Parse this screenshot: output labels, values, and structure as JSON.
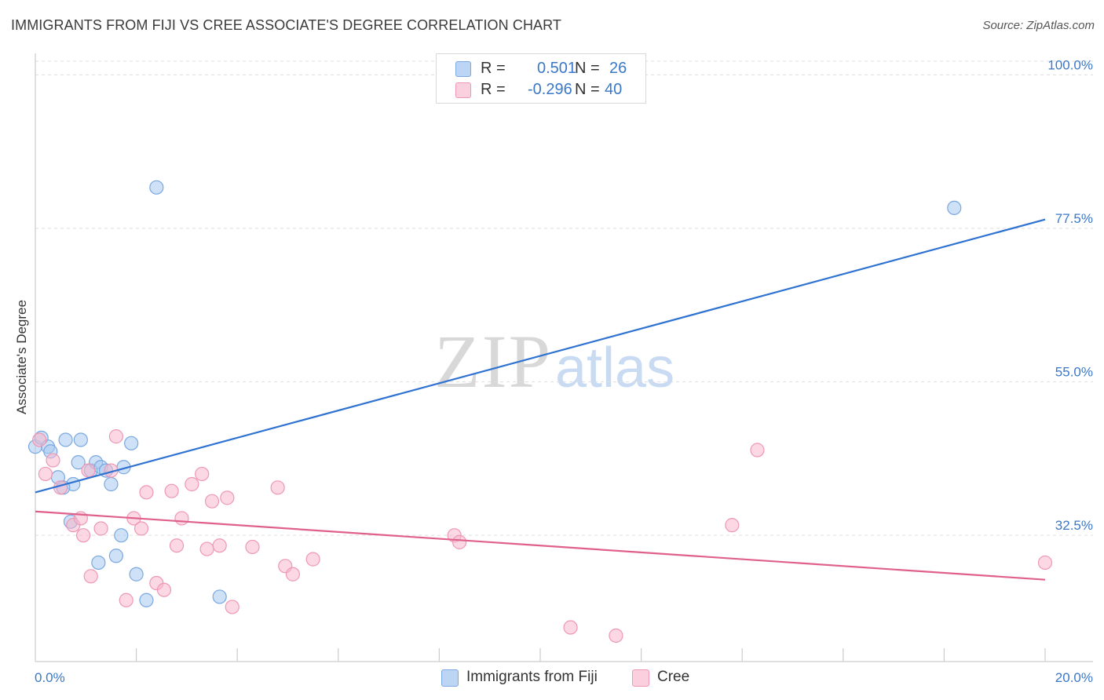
{
  "title": "IMMIGRANTS FROM FIJI VS CREE ASSOCIATE'S DEGREE CORRELATION CHART",
  "source": "Source: ZipAtlas.com",
  "watermark": {
    "zip": "ZIP",
    "atlas": "atlas"
  },
  "legend": {
    "rows": [
      {
        "r_label": "R =",
        "r_value": "0.501",
        "n_label": "N =",
        "n_value": "26"
      },
      {
        "r_label": "R =",
        "r_value": "-0.296",
        "n_label": "N =",
        "n_value": "40"
      }
    ]
  },
  "colors": {
    "fiji_fill": "#a8c8f0",
    "fiji_stroke": "#7aa8e0",
    "fiji_line": "#2e72d2",
    "cree_fill": "#f7b8cc",
    "cree_stroke": "#ee98b4",
    "cree_line": "#e0608c",
    "grid": "#dddddd",
    "tick_label": "#3a78c8"
  },
  "chart_data": {
    "type": "scatter",
    "title": "IMMIGRANTS FROM FIJI VS CREE ASSOCIATE'S DEGREE CORRELATION CHART",
    "xlabel": "",
    "ylabel": "Associate's Degree",
    "xlim": [
      0,
      20
    ],
    "ylim": [
      14,
      102
    ],
    "x_tick_labels": [
      "0.0%",
      "20.0%"
    ],
    "y_ticks": [
      32.5,
      55.0,
      77.5,
      100.0
    ],
    "y_tick_labels": [
      "32.5%",
      "55.0%",
      "77.5%",
      "100.0%"
    ],
    "series": [
      {
        "name": "Immigrants from Fiji",
        "r": 0.501,
        "n": 26,
        "points": [
          [
            0.0,
            45.5
          ],
          [
            0.12,
            46.8
          ],
          [
            0.25,
            45.5
          ],
          [
            0.3,
            44.8
          ],
          [
            0.45,
            41.0
          ],
          [
            0.6,
            46.5
          ],
          [
            0.75,
            40.0
          ],
          [
            0.85,
            43.2
          ],
          [
            0.9,
            46.5
          ],
          [
            1.1,
            42.0
          ],
          [
            1.2,
            43.2
          ],
          [
            1.3,
            42.5
          ],
          [
            1.4,
            42.0
          ],
          [
            1.5,
            40.0
          ],
          [
            1.75,
            42.5
          ],
          [
            1.9,
            46.0
          ],
          [
            0.7,
            34.5
          ],
          [
            1.25,
            28.5
          ],
          [
            1.6,
            29.5
          ],
          [
            1.7,
            32.5
          ],
          [
            2.0,
            26.8
          ],
          [
            2.2,
            23.0
          ],
          [
            2.4,
            83.5
          ],
          [
            3.65,
            23.5
          ],
          [
            18.2,
            80.5
          ],
          [
            0.55,
            39.5
          ]
        ],
        "trend": {
          "x": [
            0,
            20
          ],
          "y": [
            38.8,
            78.8
          ]
        }
      },
      {
        "name": "Cree",
        "r": -0.296,
        "n": 40,
        "points": [
          [
            0.08,
            46.5
          ],
          [
            0.2,
            41.5
          ],
          [
            0.35,
            43.5
          ],
          [
            0.5,
            39.5
          ],
          [
            0.75,
            34.0
          ],
          [
            0.9,
            35.0
          ],
          [
            0.95,
            32.5
          ],
          [
            1.05,
            42.0
          ],
          [
            1.1,
            26.5
          ],
          [
            1.3,
            33.5
          ],
          [
            1.5,
            42.0
          ],
          [
            1.6,
            47.0
          ],
          [
            1.8,
            23.0
          ],
          [
            1.95,
            35.0
          ],
          [
            2.1,
            33.5
          ],
          [
            2.2,
            38.8
          ],
          [
            2.4,
            25.5
          ],
          [
            2.55,
            24.5
          ],
          [
            2.7,
            39.0
          ],
          [
            2.8,
            31.0
          ],
          [
            2.9,
            35.0
          ],
          [
            3.1,
            40.0
          ],
          [
            3.3,
            41.5
          ],
          [
            3.4,
            30.5
          ],
          [
            3.5,
            37.5
          ],
          [
            3.65,
            31.0
          ],
          [
            3.8,
            38.0
          ],
          [
            3.9,
            22.0
          ],
          [
            4.3,
            30.8
          ],
          [
            4.8,
            39.5
          ],
          [
            4.95,
            28.0
          ],
          [
            5.1,
            26.8
          ],
          [
            5.5,
            29.0
          ],
          [
            8.3,
            32.5
          ],
          [
            8.4,
            31.5
          ],
          [
            10.6,
            19.0
          ],
          [
            11.5,
            17.8
          ],
          [
            13.8,
            34.0
          ],
          [
            14.3,
            45.0
          ],
          [
            20.0,
            28.5
          ]
        ],
        "trend": {
          "x": [
            0,
            20
          ],
          "y": [
            36.0,
            26.0
          ]
        }
      }
    ]
  },
  "bottom_legend": {
    "fiji_label": "Immigrants from Fiji",
    "cree_label": "Cree"
  }
}
